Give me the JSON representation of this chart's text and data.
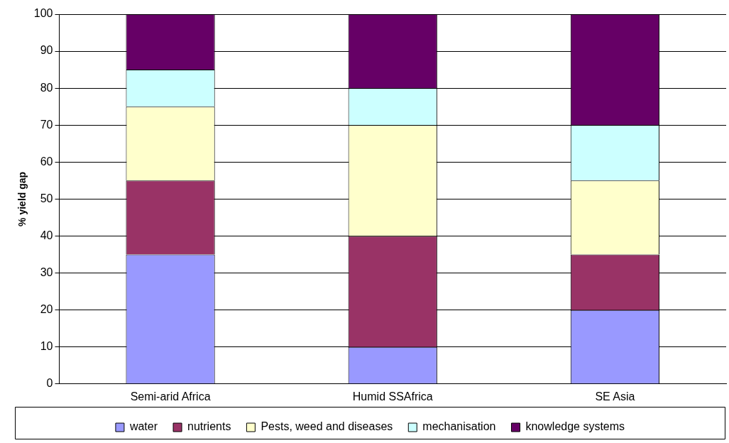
{
  "chart_data": {
    "type": "bar",
    "stacked": true,
    "ylabel": "% yield gap",
    "categories": [
      "Semi-arid Africa",
      "Humid SSAfrica",
      "SE Asia"
    ],
    "series": [
      {
        "name": "water",
        "color": "#9999ff",
        "values": [
          35,
          10,
          20
        ]
      },
      {
        "name": "nutrients",
        "color": "#993366",
        "values": [
          20,
          30,
          15
        ]
      },
      {
        "name": "Pests, weed and diseases",
        "color": "#ffffcc",
        "values": [
          20,
          30,
          20
        ]
      },
      {
        "name": "mechanisation",
        "color": "#ccffff",
        "values": [
          10,
          10,
          15
        ]
      },
      {
        "name": "knowledge systems",
        "color": "#660066",
        "values": [
          15,
          20,
          30
        ]
      }
    ],
    "ylim": [
      0,
      100
    ],
    "yticks": [
      0,
      10,
      20,
      30,
      40,
      50,
      60,
      70,
      80,
      90,
      100
    ],
    "grid": "y",
    "legend": "bottom"
  }
}
